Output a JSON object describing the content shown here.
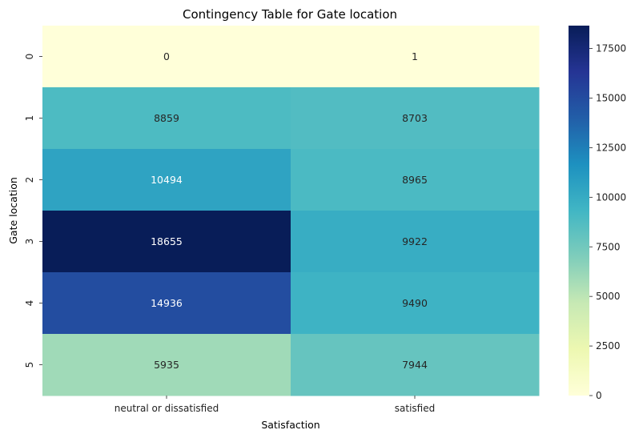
{
  "chart_data": {
    "type": "heatmap",
    "title": "Contingency Table for Gate location",
    "xlabel": "Satisfaction",
    "ylabel": "Gate location",
    "x_categories": [
      "neutral or dissatisfied",
      "satisfied"
    ],
    "y_categories": [
      "0",
      "1",
      "2",
      "3",
      "4",
      "5"
    ],
    "values": [
      [
        0,
        1
      ],
      [
        8859,
        8703
      ],
      [
        10494,
        8965
      ],
      [
        18655,
        9922
      ],
      [
        14936,
        9490
      ],
      [
        5935,
        7944
      ]
    ],
    "colormap": "YlGnBu",
    "vmin": 0,
    "vmax": 18655,
    "colorbar_ticks": [
      0,
      2500,
      5000,
      7500,
      10000,
      12500,
      15000,
      17500
    ],
    "colorbar_tick_labels": [
      "0",
      "2500",
      "5000",
      "7500",
      "10000",
      "12500",
      "15000",
      "17500"
    ],
    "grid": false
  }
}
